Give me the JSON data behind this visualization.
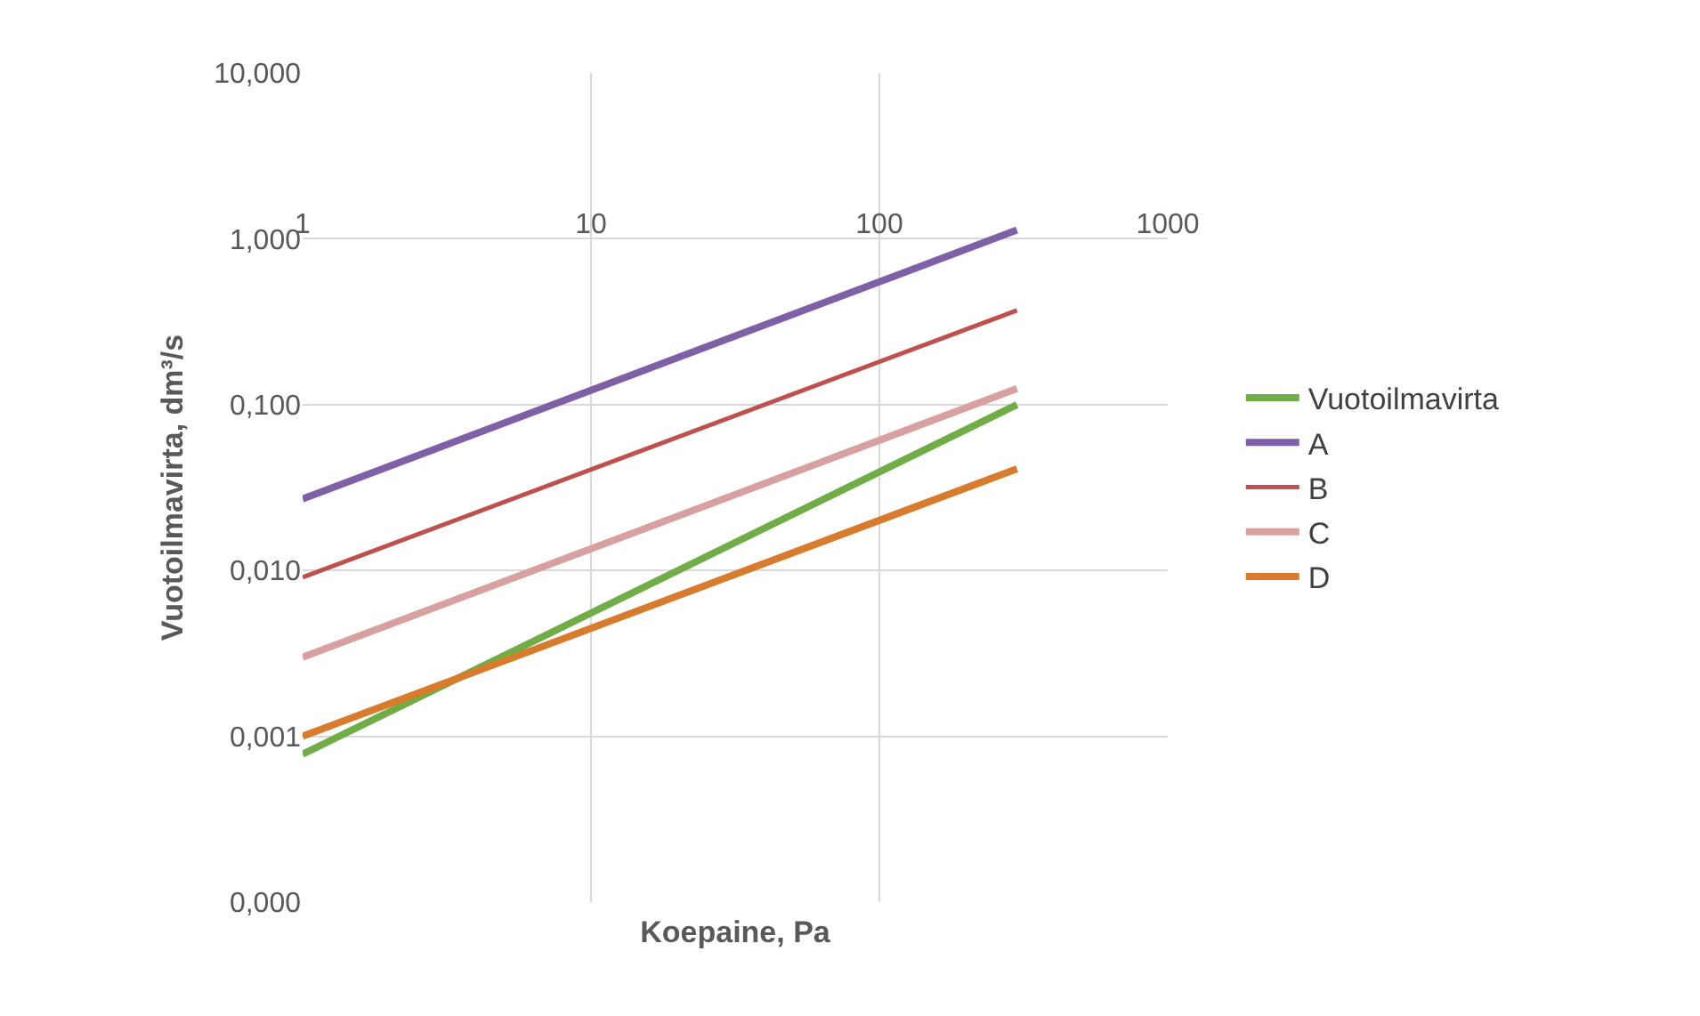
{
  "chart_data": {
    "type": "line",
    "xlabel": "Koepaine, Pa",
    "ylabel": "Vuotoilmavirta, dm³/s",
    "log": "xy",
    "grid": true,
    "legend": "right",
    "marker": "none",
    "line_style": "solid",
    "xlim": [
      1,
      1000
    ],
    "xticks": [
      1,
      10,
      100,
      1000
    ],
    "ylim": [
      0.0001,
      10
    ],
    "yticks": [
      {
        "value": 0.0001,
        "label": "0,000"
      },
      {
        "value": 0.001,
        "label": "0,001"
      },
      {
        "value": 0.01,
        "label": "0,010"
      },
      {
        "value": 0.1,
        "label": "0,100"
      },
      {
        "value": 1,
        "label": "1,000"
      },
      {
        "value": 10,
        "label": "10,000"
      }
    ],
    "x": [
      1,
      300
    ],
    "series": [
      {
        "name": "Vuotoilmavirta",
        "color": "#70ad47",
        "values": [
          0.00078,
          0.1
        ]
      },
      {
        "name": "A",
        "color": "#7f5fa6",
        "values": [
          0.027,
          1.13
        ]
      },
      {
        "name": "B",
        "color": "#c0504d",
        "values": [
          0.0091,
          0.37
        ]
      },
      {
        "name": "C",
        "color": "#d9a0a0",
        "values": [
          0.003,
          0.125
        ]
      },
      {
        "name": "D",
        "color": "#d97b2c",
        "values": [
          0.001,
          0.041
        ]
      }
    ]
  }
}
